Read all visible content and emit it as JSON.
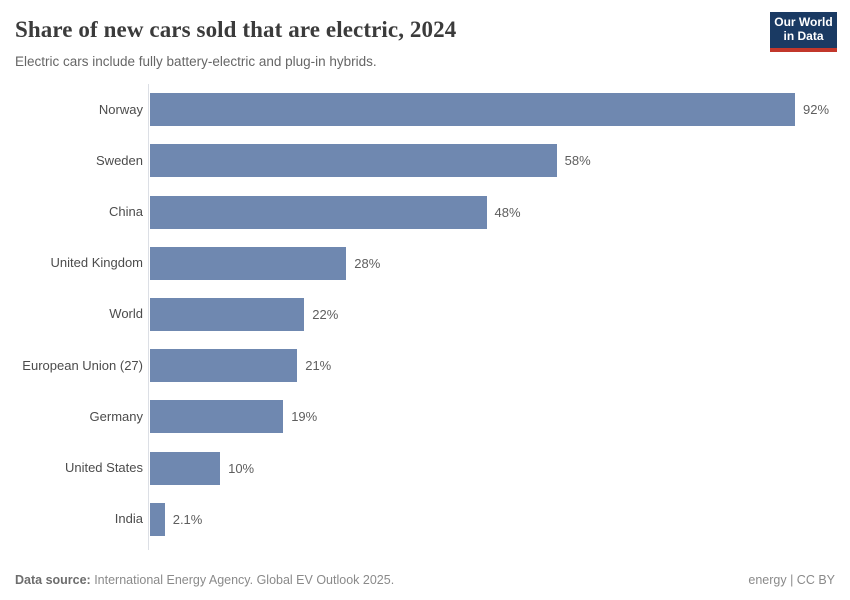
{
  "header": {
    "logo": {
      "line1": "Our World",
      "line2": "in Data"
    }
  },
  "chart_data": {
    "type": "bar",
    "orientation": "horizontal",
    "title": "Share of new cars sold that are electric, 2024",
    "subtitle": "Electric cars include fully battery-electric and plug-in hybrids.",
    "categories": [
      "Norway",
      "Sweden",
      "China",
      "United Kingdom",
      "World",
      "European Union (27)",
      "Germany",
      "United States",
      "India"
    ],
    "values": [
      92,
      58,
      48,
      28,
      22,
      21,
      19,
      10,
      2.1
    ],
    "value_labels": [
      "92%",
      "58%",
      "48%",
      "28%",
      "22%",
      "21%",
      "19%",
      "10%",
      "2.1%"
    ],
    "xlabel": "",
    "ylabel": "",
    "xlim": [
      0,
      92
    ],
    "grid": false,
    "legend": "none",
    "bar_color": "#6f88b0",
    "axis_line_color": "#dcdfe5"
  },
  "footer": {
    "source_label": "Data source:",
    "source_text": " International Energy Agency. Global EV Outlook 2025.",
    "credit": "energy | CC BY"
  },
  "colors": {
    "logo_background": "#1a3a63",
    "logo_accent_red": "#c2372b",
    "title_text": "#3b3b3b",
    "subtitle_text": "#666666",
    "category_label_text": "#4c4c4c",
    "value_label_text": "#5e5e5e",
    "footer_text": "#8a8a8a"
  }
}
